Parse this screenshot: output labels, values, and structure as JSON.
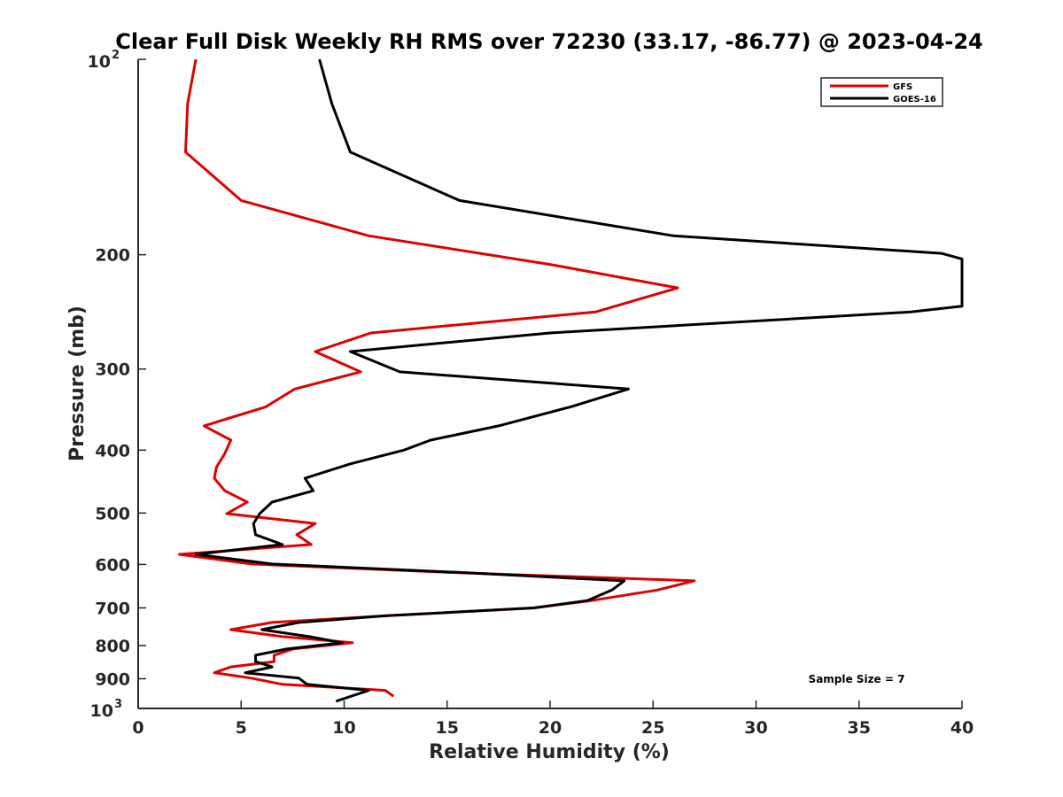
{
  "chart_data": {
    "type": "line",
    "title": "Clear Full Disk Weekly RH RMS over 72230 (33.17, -86.77) @ 2023-04-24",
    "xlabel": "Relative Humidity (%)",
    "ylabel": "Pressure (mb)",
    "xlim": [
      0,
      40
    ],
    "ylim": [
      100,
      1000
    ],
    "yscale": "log",
    "y_reversed": true,
    "grid": false,
    "legend_position": "top-right",
    "x_ticks": [
      0,
      5,
      10,
      15,
      20,
      25,
      30,
      35,
      40
    ],
    "x_tick_labels": [
      "0",
      "5",
      "10",
      "15",
      "20",
      "25",
      "30",
      "35",
      "40"
    ],
    "y_ticks": [
      200,
      300,
      400,
      500,
      600,
      700,
      800,
      900
    ],
    "y_tick_labels": [
      "200",
      "300",
      "400",
      "500",
      "600",
      "700",
      "800",
      "900"
    ],
    "y_tick_100_base": "10",
    "y_tick_100_exp": "2",
    "y_tick_1000_base": "10",
    "y_tick_1000_exp": "3",
    "annotation": "Sample Size = 7",
    "series": [
      {
        "name": "GFS",
        "color": "#e00000",
        "points": [
          [
            2.8,
            100
          ],
          [
            2.4,
            117
          ],
          [
            2.3,
            139
          ],
          [
            5.0,
            165
          ],
          [
            11.2,
            187
          ],
          [
            20.0,
            207
          ],
          [
            26.2,
            225
          ],
          [
            22.2,
            245
          ],
          [
            11.3,
            264
          ],
          [
            8.6,
            282
          ],
          [
            10.8,
            303
          ],
          [
            7.6,
            322
          ],
          [
            6.2,
            343
          ],
          [
            3.2,
            367
          ],
          [
            4.5,
            386
          ],
          [
            4.2,
            405
          ],
          [
            3.8,
            425
          ],
          [
            3.7,
            442
          ],
          [
            4.2,
            462
          ],
          [
            5.3,
            481
          ],
          [
            4.3,
            501
          ],
          [
            8.6,
            519
          ],
          [
            7.7,
            540
          ],
          [
            8.4,
            559
          ],
          [
            2.0,
            579
          ],
          [
            5.5,
            599
          ],
          [
            15.0,
            617
          ],
          [
            27.0,
            636
          ],
          [
            25.2,
            657
          ],
          [
            22.0,
            682
          ],
          [
            19.2,
            700
          ],
          [
            12.0,
            720
          ],
          [
            6.5,
            737
          ],
          [
            4.5,
            756
          ],
          [
            7.0,
            775
          ],
          [
            10.4,
            792
          ],
          [
            7.5,
            810
          ],
          [
            6.6,
            828
          ],
          [
            6.6,
            847
          ],
          [
            4.5,
            863
          ],
          [
            3.7,
            881
          ],
          [
            5.5,
            898
          ],
          [
            7.0,
            918
          ],
          [
            12.0,
            938
          ],
          [
            12.4,
            958
          ]
        ]
      },
      {
        "name": "GOES-16",
        "color": "#000000",
        "points": [
          [
            8.8,
            100
          ],
          [
            9.4,
            117
          ],
          [
            10.3,
            139
          ],
          [
            15.6,
            165
          ],
          [
            26.0,
            187
          ],
          [
            39.0,
            199
          ],
          [
            40.0,
            203
          ],
          [
            40.0,
            240
          ],
          [
            37.5,
            245
          ],
          [
            20.0,
            264
          ],
          [
            10.3,
            282
          ],
          [
            12.7,
            303
          ],
          [
            23.8,
            322
          ],
          [
            21.0,
            343
          ],
          [
            17.5,
            367
          ],
          [
            14.2,
            386
          ],
          [
            12.9,
            400
          ],
          [
            10.3,
            420
          ],
          [
            8.1,
            442
          ],
          [
            8.5,
            462
          ],
          [
            6.5,
            481
          ],
          [
            5.9,
            501
          ],
          [
            5.6,
            519
          ],
          [
            5.7,
            540
          ],
          [
            7.0,
            559
          ],
          [
            2.8,
            579
          ],
          [
            6.5,
            599
          ],
          [
            15.5,
            617
          ],
          [
            23.6,
            636
          ],
          [
            23.0,
            657
          ],
          [
            21.8,
            682
          ],
          [
            19.2,
            700
          ],
          [
            12.0,
            720
          ],
          [
            7.8,
            737
          ],
          [
            6.0,
            756
          ],
          [
            8.3,
            775
          ],
          [
            9.9,
            792
          ],
          [
            7.2,
            810
          ],
          [
            5.7,
            828
          ],
          [
            5.7,
            847
          ],
          [
            6.5,
            863
          ],
          [
            5.2,
            881
          ],
          [
            7.8,
            898
          ],
          [
            8.2,
            918
          ],
          [
            11.2,
            938
          ],
          [
            9.6,
            975
          ]
        ]
      }
    ]
  }
}
